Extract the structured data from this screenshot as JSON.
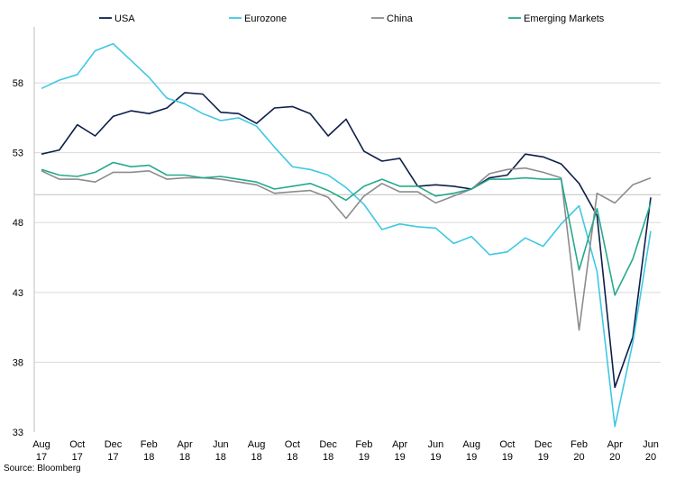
{
  "source_note": "Source: Bloomberg",
  "chart_data": {
    "type": "line",
    "title": "",
    "xlabel": "",
    "ylabel": "",
    "ylim": [
      33,
      62
    ],
    "yticks": [
      33,
      38,
      43,
      48,
      53,
      58
    ],
    "grid": "horizontal",
    "legend": "top",
    "x": [
      "Aug 17",
      "Sep 17",
      "Oct 17",
      "Nov 17",
      "Dec 17",
      "Jan 18",
      "Feb 18",
      "Mar 18",
      "Apr 18",
      "May 18",
      "Jun 18",
      "Jul 18",
      "Aug 18",
      "Sep 18",
      "Oct 18",
      "Nov 18",
      "Dec 18",
      "Jan 19",
      "Feb 19",
      "Mar 19",
      "Apr 19",
      "May 19",
      "Jun 19",
      "Jul 19",
      "Aug 19",
      "Sep 19",
      "Oct 19",
      "Nov 19",
      "Dec 19",
      "Jan 20",
      "Feb 20",
      "Mar 20",
      "Apr 20",
      "May 20",
      "Jun 20"
    ],
    "xtick_labels": [
      {
        "line1": "Aug",
        "line2": "17",
        "index": 0
      },
      {
        "line1": "Oct",
        "line2": "17",
        "index": 2
      },
      {
        "line1": "Dec",
        "line2": "17",
        "index": 4
      },
      {
        "line1": "Feb",
        "line2": "18",
        "index": 6
      },
      {
        "line1": "Apr",
        "line2": "18",
        "index": 8
      },
      {
        "line1": "Jun",
        "line2": "18",
        "index": 10
      },
      {
        "line1": "Aug",
        "line2": "18",
        "index": 12
      },
      {
        "line1": "Oct",
        "line2": "18",
        "index": 14
      },
      {
        "line1": "Dec",
        "line2": "18",
        "index": 16
      },
      {
        "line1": "Feb",
        "line2": "19",
        "index": 18
      },
      {
        "line1": "Apr",
        "line2": "19",
        "index": 20
      },
      {
        "line1": "Jun",
        "line2": "19",
        "index": 22
      },
      {
        "line1": "Aug",
        "line2": "19",
        "index": 24
      },
      {
        "line1": "Oct",
        "line2": "19",
        "index": 26
      },
      {
        "line1": "Dec",
        "line2": "19",
        "index": 28
      },
      {
        "line1": "Feb",
        "line2": "20",
        "index": 30
      },
      {
        "line1": "Apr",
        "line2": "20",
        "index": 32
      },
      {
        "line1": "Jun",
        "line2": "20",
        "index": 34
      }
    ],
    "series": [
      {
        "name": "USA",
        "color": "#0d1f4a",
        "values": [
          52.9,
          53.2,
          55.0,
          54.2,
          55.6,
          56.0,
          55.8,
          56.2,
          57.3,
          57.2,
          55.9,
          55.8,
          55.1,
          56.2,
          56.3,
          55.8,
          54.2,
          55.4,
          53.1,
          52.4,
          52.6,
          50.6,
          50.7,
          50.6,
          50.4,
          51.2,
          51.4,
          52.9,
          52.7,
          52.2,
          50.8,
          48.5,
          36.2,
          39.8,
          49.8
        ]
      },
      {
        "name": "Eurozone",
        "color": "#3fc8e4",
        "values": [
          57.6,
          58.2,
          58.6,
          60.3,
          60.8,
          59.6,
          58.4,
          56.9,
          56.5,
          55.8,
          55.3,
          55.5,
          54.9,
          53.4,
          52.0,
          51.8,
          51.4,
          50.5,
          49.3,
          47.5,
          47.9,
          47.7,
          47.6,
          46.5,
          47.0,
          45.7,
          45.9,
          46.9,
          46.3,
          47.9,
          49.2,
          44.5,
          33.4,
          39.4,
          47.4
        ]
      },
      {
        "name": "China",
        "color": "#8c8c8c",
        "values": [
          51.7,
          51.1,
          51.1,
          50.9,
          51.6,
          51.6,
          51.7,
          51.1,
          51.2,
          51.2,
          51.1,
          50.9,
          50.7,
          50.1,
          50.2,
          50.3,
          49.8,
          48.3,
          49.9,
          50.8,
          50.2,
          50.2,
          49.4,
          49.9,
          50.4,
          51.5,
          51.8,
          51.9,
          51.6,
          51.2,
          40.3,
          50.1,
          49.4,
          50.7,
          51.2
        ]
      },
      {
        "name": "Emerging Markets",
        "color": "#27a98c",
        "values": [
          51.8,
          51.4,
          51.3,
          51.6,
          52.3,
          52.0,
          52.1,
          51.4,
          51.4,
          51.2,
          51.3,
          51.1,
          50.9,
          50.4,
          50.6,
          50.8,
          50.3,
          49.6,
          50.6,
          51.1,
          50.6,
          50.6,
          49.9,
          50.1,
          50.4,
          51.1,
          51.1,
          51.2,
          51.1,
          51.1,
          44.6,
          49.0,
          42.8,
          45.4,
          49.4
        ]
      }
    ]
  }
}
